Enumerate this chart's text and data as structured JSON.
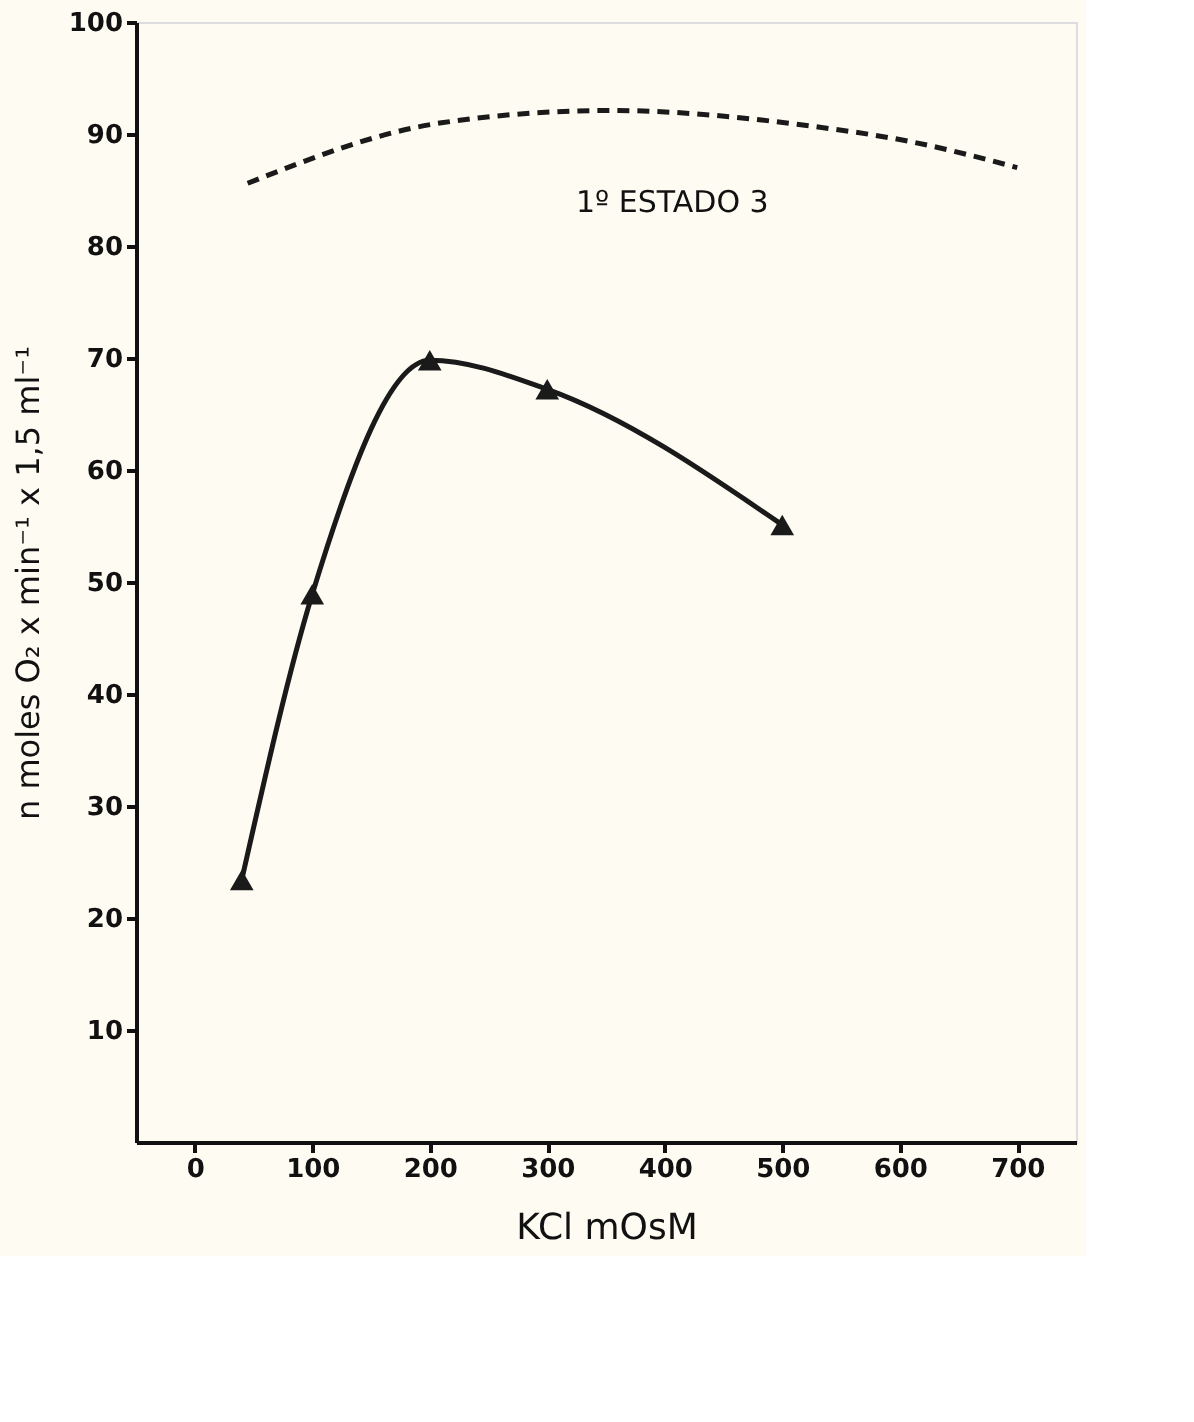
{
  "chart_data": {
    "type": "line",
    "xlabel": "KCl  mOsM",
    "ylabel": "n moles O₂ x min⁻¹ x 1,5 ml⁻¹",
    "annotations": [
      "1º ESTADO 3"
    ],
    "series": [
      {
        "color": "#1a1a1a",
        "marker": "triangle",
        "line_style": "solid",
        "x": [
          40,
          100,
          200,
          300,
          500
        ],
        "values": [
          23.4,
          48.9,
          69.8,
          67.2,
          55.1
        ]
      },
      {
        "color": "#1a1a1a",
        "marker": "none",
        "line_style": "dashed",
        "x": [
          45,
          210,
          353,
          525,
          610,
          700
        ],
        "values": [
          85.6,
          91,
          92.1,
          90.7,
          89.3,
          87
        ]
      }
    ],
    "xlim": [
      -50,
      750
    ],
    "xticks": [
      0,
      100,
      200,
      300,
      400,
      500,
      600,
      700
    ],
    "ylim": [
      0,
      100
    ],
    "yticks": [
      10,
      20,
      30,
      40,
      50,
      60,
      70,
      80,
      90,
      100
    ],
    "grid": false
  }
}
